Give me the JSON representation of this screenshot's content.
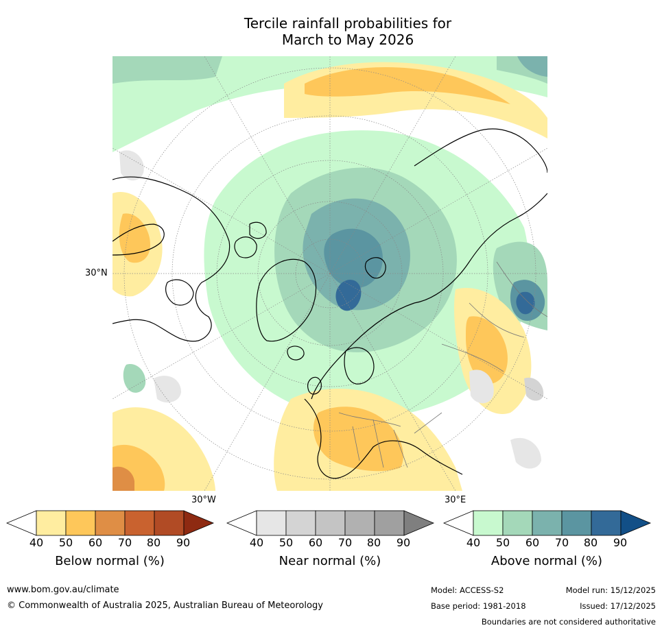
{
  "title": {
    "line1": "Tercile rainfall probabilities for",
    "line2": "March to May 2026"
  },
  "map": {
    "projection": "north-polar-stereographic",
    "label_lat_30n": "30°N",
    "label_lon_30w": "30°W",
    "label_lon_30e": "30°E"
  },
  "colorbars": [
    {
      "id": "below",
      "label": "Below normal (%)",
      "ticks": [
        "40",
        "50",
        "60",
        "70",
        "80",
        "90"
      ],
      "colors": [
        "#ffffff",
        "#ffeda0",
        "#fec75a",
        "#df8e45",
        "#c9622f",
        "#b14b25",
        "#8e2a12"
      ]
    },
    {
      "id": "near",
      "label": "Near normal (%)",
      "ticks": [
        "40",
        "50",
        "60",
        "70",
        "80",
        "90"
      ],
      "colors": [
        "#ffffff",
        "#e6e6e6",
        "#d4d4d4",
        "#c4c4c4",
        "#b1b1b1",
        "#a0a0a0",
        "#7f7f7f"
      ]
    },
    {
      "id": "above",
      "label": "Above normal (%)",
      "ticks": [
        "40",
        "50",
        "60",
        "70",
        "80",
        "90"
      ],
      "colors": [
        "#ffffff",
        "#c8f9cf",
        "#a4d8b9",
        "#7bb2ad",
        "#5b95a1",
        "#336a98",
        "#124f87"
      ]
    }
  ],
  "footer": {
    "url": "www.bom.gov.au/climate",
    "copyright": "© Commonwealth of Australia 2025, Australian Bureau of Meteorology",
    "model": "Model: ACCESS-S2",
    "base_period": "Base period: 1981-2018",
    "model_run": "Model run: 15/12/2025",
    "issued": "Issued: 17/12/2025",
    "disclaimer": "Boundaries are not considered authoritative"
  }
}
